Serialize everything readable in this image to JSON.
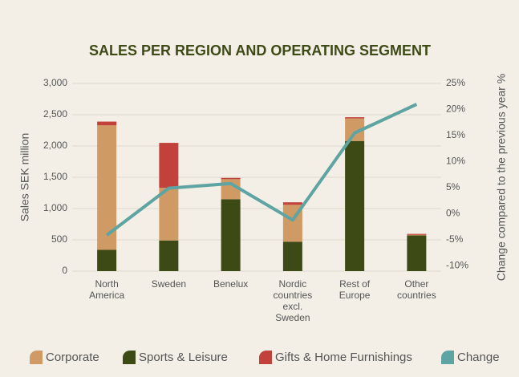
{
  "chart_data": {
    "type": "bar",
    "stacked": true,
    "title": "SALES PER REGION AND OPERATING SEGMENT",
    "y_label": "Sales SEK million",
    "y2_label": "Change compared to the previous year %",
    "categories": [
      "North America",
      "Sweden",
      "Benelux",
      "Nordic countries excl. Sweden",
      "Rest of Europe",
      "Other countries"
    ],
    "series": [
      {
        "name": "Corporate",
        "color": "#d09a64",
        "stack_order": 1,
        "values": [
          1990,
          840,
          320,
          590,
          360,
          10
        ]
      },
      {
        "name": "Sports & Leisure",
        "color": "#3d4a16",
        "stack_order": 0,
        "values": [
          340,
          490,
          1150,
          470,
          2080,
          570
        ]
      },
      {
        "name": "Gifts & Home Furnishings",
        "color": "#c2413a",
        "stack_order": 2,
        "values": [
          60,
          720,
          20,
          40,
          20,
          15
        ]
      },
      {
        "name": "Change",
        "color": "#5ea4a2",
        "type": "line",
        "axis": "y2",
        "values": [
          -4.1,
          4.9,
          5.8,
          -1.2,
          15.5,
          21.0
        ]
      }
    ],
    "ylim": [
      0,
      3000
    ],
    "yticks": [
      0,
      500,
      {
        "value": 1000,
        "label": "1,000"
      },
      {
        "value": 1500,
        "label": "1,500"
      },
      {
        "value": 2000,
        "label": "2,000"
      },
      {
        "value": 2500,
        "label": "2,500"
      },
      {
        "value": 3000,
        "label": "3,000"
      }
    ],
    "y2lim": [
      -11,
      25
    ],
    "y2ticks": [
      {
        "value": -10,
        "label": "-10%"
      },
      {
        "value": -5,
        "label": "-5%"
      },
      {
        "value": 0,
        "label": "0%"
      },
      {
        "value": 5,
        "label": "5%"
      },
      {
        "value": 10,
        "label": "10%"
      },
      {
        "value": 15,
        "label": "15%"
      },
      {
        "value": 20,
        "label": "20%"
      },
      {
        "value": 25,
        "label": "25%"
      }
    ],
    "grid": true,
    "legend": "bottom"
  }
}
